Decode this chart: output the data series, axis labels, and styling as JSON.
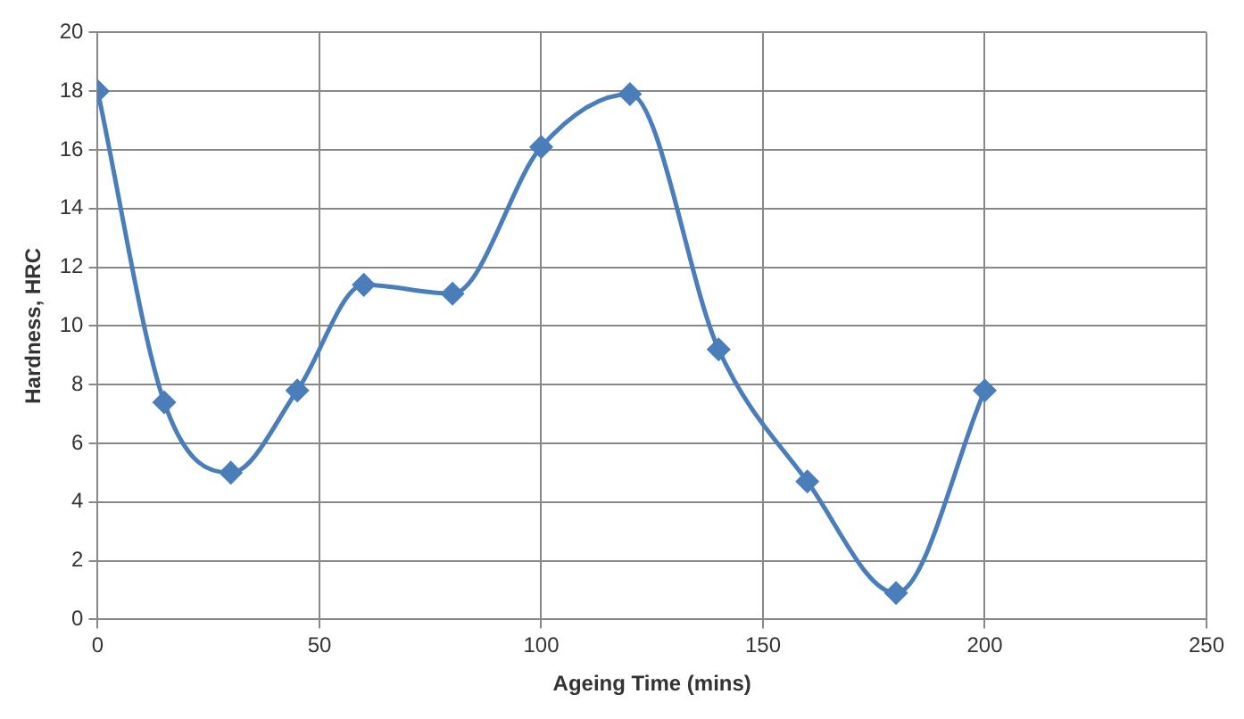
{
  "chart_data": {
    "type": "line",
    "xlabel": "Ageing Time (mins)",
    "ylabel": "Hardness, HRC",
    "x": [
      0,
      15,
      30,
      45,
      60,
      80,
      100,
      120,
      140,
      160,
      180,
      200
    ],
    "series": [
      {
        "color": "#4a7ebb",
        "values": [
          18,
          7.4,
          5,
          7.8,
          11.4,
          11.1,
          16.1,
          17.9,
          9.2,
          4.7,
          0.9,
          7.8
        ]
      }
    ],
    "xlim": [
      0,
      250
    ],
    "xticks": [
      0,
      50,
      100,
      150,
      200,
      250
    ],
    "ylim": [
      0,
      20
    ],
    "yticks": [
      0,
      2,
      4,
      6,
      8,
      10,
      12,
      14,
      16,
      18,
      20
    ],
    "grid": true,
    "legend": false,
    "marker": "diamond",
    "line_style": "solid"
  }
}
